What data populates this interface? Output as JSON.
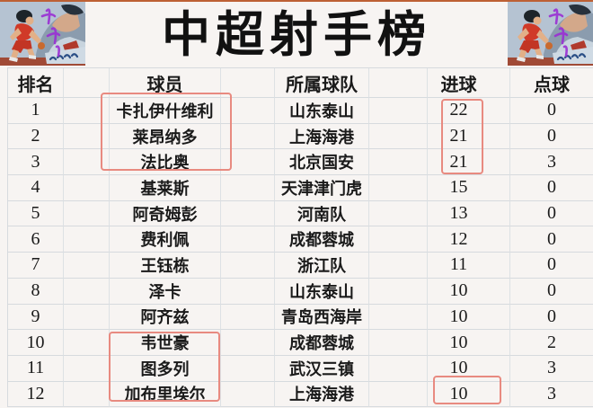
{
  "page": {
    "title_banner": "中超射手榜"
  },
  "table": {
    "headers": [
      "排名",
      "球员",
      "所属球队",
      "进球",
      "点球"
    ],
    "rows": [
      {
        "rank": "1",
        "player": "卡扎伊什维利",
        "team": "山东泰山",
        "goals": "22",
        "penalties": "0"
      },
      {
        "rank": "2",
        "player": "莱昂纳多",
        "team": "上海海港",
        "goals": "21",
        "penalties": "0"
      },
      {
        "rank": "3",
        "player": "法比奥",
        "team": "北京国安",
        "goals": "21",
        "penalties": "3"
      },
      {
        "rank": "4",
        "player": "基莱斯",
        "team": "天津津门虎",
        "goals": "15",
        "penalties": "0"
      },
      {
        "rank": "5",
        "player": "阿奇姆彭",
        "team": "河南队",
        "goals": "13",
        "penalties": "0"
      },
      {
        "rank": "6",
        "player": "费利佩",
        "team": "成都蓉城",
        "goals": "12",
        "penalties": "0"
      },
      {
        "rank": "7",
        "player": "王钰栋",
        "team": "浙江队",
        "goals": "11",
        "penalties": "0"
      },
      {
        "rank": "8",
        "player": "泽卡",
        "team": "山东泰山",
        "goals": "10",
        "penalties": "0"
      },
      {
        "rank": "9",
        "player": "阿齐兹",
        "team": "青岛西海岸",
        "goals": "10",
        "penalties": "0"
      },
      {
        "rank": "10",
        "player": "韦世豪",
        "team": "成都蓉城",
        "goals": "10",
        "penalties": "2"
      },
      {
        "rank": "11",
        "player": "图多列",
        "team": "武汉三镇",
        "goals": "10",
        "penalties": "3"
      },
      {
        "rank": "12",
        "player": "加布里埃尔",
        "team": "上海海港",
        "goals": "10",
        "penalties": "3"
      }
    ]
  },
  "highlights": {
    "box_color": "#e88a80",
    "boxes": [
      "top-3-player-names",
      "top-3-goal-counts",
      "players-rank-10-12",
      "rank-12-goal-count"
    ]
  },
  "decor": {
    "corner_artwork": "slam-dunk-basketball-player",
    "artwork_background": "#b5c3d2",
    "jersey_color": "#d03a28",
    "graffiti_color": "#9a2fd4"
  }
}
